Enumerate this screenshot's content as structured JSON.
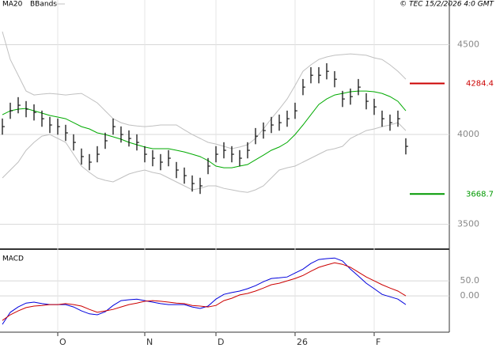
{
  "chart_data": [
    {
      "type": "ohlc",
      "source": "© TEC 15/2/2026 4:0 GMT",
      "categories": [
        null,
        null,
        null,
        null,
        null,
        null,
        null,
        "O",
        null,
        null,
        null,
        null,
        null,
        null,
        null,
        null,
        null,
        null,
        "N",
        null,
        null,
        null,
        null,
        null,
        null,
        null,
        null,
        "D",
        null,
        null,
        null,
        null,
        null,
        null,
        null,
        null,
        null,
        "26",
        null,
        null,
        null,
        null,
        null,
        null,
        null,
        null,
        null,
        "F",
        null,
        null,
        null,
        null
      ],
      "bars": {
        "color": "#000000",
        "high": [
          4089,
          4177,
          4208,
          4186,
          4168,
          4133,
          4098,
          4089,
          4054,
          4001,
          3922,
          3891,
          3935,
          4010,
          4089,
          4045,
          4023,
          4001,
          3935,
          3913,
          3891,
          3913,
          3847,
          3816,
          3772,
          3759,
          3869,
          3935,
          3957,
          3935,
          3913,
          3957,
          4036,
          4067,
          4098,
          4111,
          4133,
          4177,
          4309,
          4375,
          4375,
          4397,
          4353,
          4243,
          4256,
          4309,
          4230,
          4199,
          4133,
          4111,
          4133,
          3979
        ],
        "low": [
          3999,
          4087,
          4118,
          4096,
          4078,
          4043,
          4008,
          3999,
          3964,
          3911,
          3832,
          3801,
          3845,
          3920,
          3999,
          3955,
          3933,
          3911,
          3845,
          3823,
          3801,
          3823,
          3757,
          3726,
          3682,
          3669,
          3779,
          3845,
          3867,
          3845,
          3823,
          3867,
          3946,
          3977,
          4008,
          4021,
          4043,
          4087,
          4219,
          4285,
          4285,
          4307,
          4263,
          4153,
          4166,
          4219,
          4140,
          4109,
          4043,
          4021,
          4043,
          3889
        ],
        "close": [
          4044,
          4132,
          4163,
          4141,
          4123,
          4088,
          4053,
          4044,
          4009,
          3956,
          3877,
          3846,
          3890,
          3965,
          4044,
          4000,
          3978,
          3956,
          3890,
          3868,
          3846,
          3868,
          3802,
          3771,
          3727,
          3714,
          3824,
          3890,
          3912,
          3890,
          3868,
          3912,
          3991,
          4022,
          4053,
          4066,
          4088,
          4132,
          4264,
          4330,
          4330,
          4352,
          4308,
          4198,
          4211,
          4264,
          4185,
          4154,
          4088,
          4066,
          4088,
          3934
        ]
      },
      "series": [
        {
          "name": "MA20",
          "color": "#00aa00",
          "values": [
            4110,
            4132,
            4141,
            4145,
            4132,
            4119,
            4106,
            4097,
            4088,
            4066,
            4044,
            4031,
            4009,
            4000,
            3987,
            3974,
            3956,
            3943,
            3930,
            3921,
            3921,
            3921,
            3912,
            3903,
            3890,
            3877,
            3855,
            3824,
            3815,
            3815,
            3824,
            3833,
            3859,
            3885,
            3912,
            3930,
            3956,
            4000,
            4053,
            4110,
            4167,
            4198,
            4220,
            4229,
            4238,
            4242,
            4242,
            4238,
            4229,
            4211,
            4185,
            4132
          ]
        }
      ],
      "bands": {
        "name": "BBands",
        "color": "#c0c0c0",
        "upper": [
          4573,
          4418,
          4330,
          4242,
          4220,
          4225,
          4229,
          4225,
          4220,
          4225,
          4229,
          4203,
          4176,
          4132,
          4088,
          4066,
          4053,
          4048,
          4044,
          4048,
          4053,
          4053,
          4053,
          4026,
          4000,
          3978,
          3956,
          3947,
          3934,
          3921,
          3930,
          3943,
          3978,
          4031,
          4088,
          4141,
          4198,
          4273,
          4352,
          4388,
          4418,
          4432,
          4441,
          4445,
          4449,
          4445,
          4441,
          4427,
          4418,
          4388,
          4352,
          4308
        ],
        "lower": [
          3758,
          3802,
          3846,
          3912,
          3956,
          3991,
          4000,
          3978,
          3956,
          3890,
          3824,
          3789,
          3758,
          3745,
          3736,
          3758,
          3780,
          3793,
          3802,
          3789,
          3780,
          3758,
          3736,
          3714,
          3692,
          3700,
          3714,
          3714,
          3700,
          3692,
          3683,
          3678,
          3692,
          3714,
          3758,
          3802,
          3815,
          3824,
          3846,
          3868,
          3890,
          3912,
          3921,
          3934,
          3978,
          4000,
          4022,
          4031,
          4044,
          4053,
          4066,
          4022
        ]
      },
      "markers": [
        {
          "value": 4284.4,
          "label": "4284.4",
          "color": "#cc0000"
        },
        {
          "value": 3668.7,
          "label": "3668.7",
          "color": "#009900"
        }
      ],
      "ylim": [
        3366,
        4749
      ],
      "yticks": [
        3500,
        4000,
        4500
      ],
      "grid": true
    },
    {
      "type": "line",
      "title": "MACD",
      "series": [
        {
          "color": "#0000dd",
          "values": [
            -95,
            -55,
            -37,
            -24,
            -21,
            -26,
            -29,
            -29,
            -29,
            -37,
            -50,
            -60,
            -63,
            -53,
            -32,
            -16,
            -13,
            -11,
            -16,
            -21,
            -26,
            -29,
            -29,
            -29,
            -37,
            -42,
            -34,
            -11,
            5,
            11,
            16,
            24,
            34,
            47,
            58,
            60,
            63,
            76,
            89,
            108,
            121,
            124,
            126,
            116,
            89,
            66,
            42,
            24,
            5,
            -3,
            -11,
            -29
          ]
        },
        {
          "color": "#cc0000",
          "values": [
            -82,
            -63,
            -50,
            -39,
            -34,
            -32,
            -29,
            -29,
            -26,
            -29,
            -34,
            -45,
            -55,
            -50,
            -45,
            -37,
            -29,
            -24,
            -18,
            -16,
            -18,
            -21,
            -24,
            -26,
            -32,
            -34,
            -37,
            -32,
            -16,
            -8,
            3,
            8,
            16,
            26,
            37,
            42,
            50,
            58,
            68,
            82,
            95,
            103,
            110,
            105,
            95,
            79,
            63,
            50,
            37,
            26,
            16,
            0
          ]
        }
      ],
      "ylim": [
        -121,
        153
      ],
      "yticks": [
        {
          "value": 0,
          "label": "0.00"
        },
        {
          "value": 50,
          "label": "50.0"
        }
      ],
      "grid": true
    }
  ]
}
